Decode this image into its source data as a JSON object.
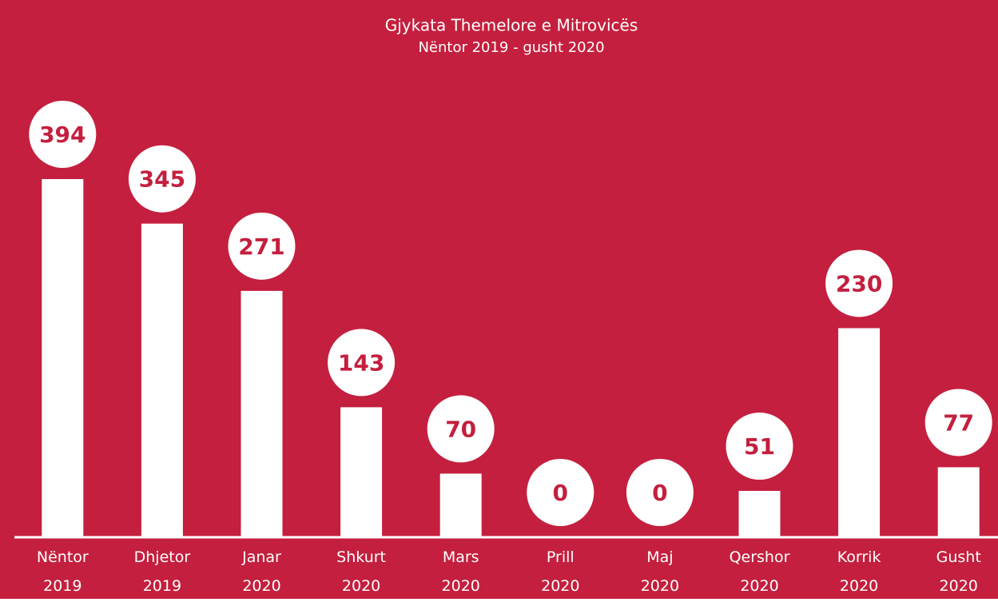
{
  "chart_data": {
    "type": "bar",
    "title": "Gjykata Themelore e Mitrovicës",
    "subtitle": "Nëntor 2019 - gusht 2020",
    "categories": [
      "Nëntor 2019",
      "Dhjetor 2019",
      "Janar 2020",
      "Shkurt 2020",
      "Mars 2020",
      "Prill 2020",
      "Maj 2020",
      "Qershor 2020",
      "Korrik 2020",
      "Gusht 2020"
    ],
    "values": [
      394,
      345,
      271,
      143,
      70,
      0,
      0,
      51,
      230,
      77
    ],
    "color": "#ffffff",
    "background": "#c41f3e"
  }
}
